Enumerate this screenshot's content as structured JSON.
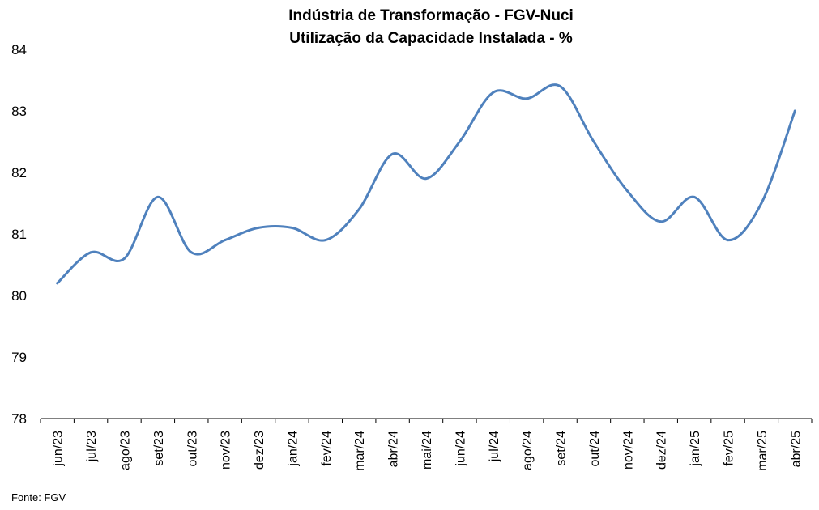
{
  "chart_data": {
    "type": "line",
    "title": "Indústria de Transformação - FGV-Nuci",
    "subtitle": "Utilização da Capacidade Instalada - %",
    "xlabel": "",
    "ylabel": "",
    "ylim": [
      78,
      84
    ],
    "yticks": [
      "78",
      "79",
      "80",
      "81",
      "82",
      "83",
      "84"
    ],
    "grid": false,
    "legend": "none",
    "categories": [
      "jun/23",
      "jul/23",
      "ago/23",
      "set/23",
      "out/23",
      "nov/23",
      "dez/23",
      "jan/24",
      "fev/24",
      "mar/24",
      "abr/24",
      "mai/24",
      "jun/24",
      "jul/24",
      "ago/24",
      "set/24",
      "out/24",
      "nov/24",
      "dez/24",
      "jan/25",
      "fev/25",
      "mar/25",
      "abr/25"
    ],
    "series": [
      {
        "values": [
          80.2,
          80.7,
          80.6,
          81.6,
          80.7,
          80.9,
          81.1,
          81.1,
          80.9,
          81.4,
          82.3,
          81.9,
          82.5,
          83.3,
          83.2,
          83.4,
          82.5,
          81.7,
          81.2,
          81.6,
          80.9,
          81.5,
          83.0
        ],
        "color": "#4f81bd"
      }
    ],
    "source": "Fonte: FGV"
  }
}
